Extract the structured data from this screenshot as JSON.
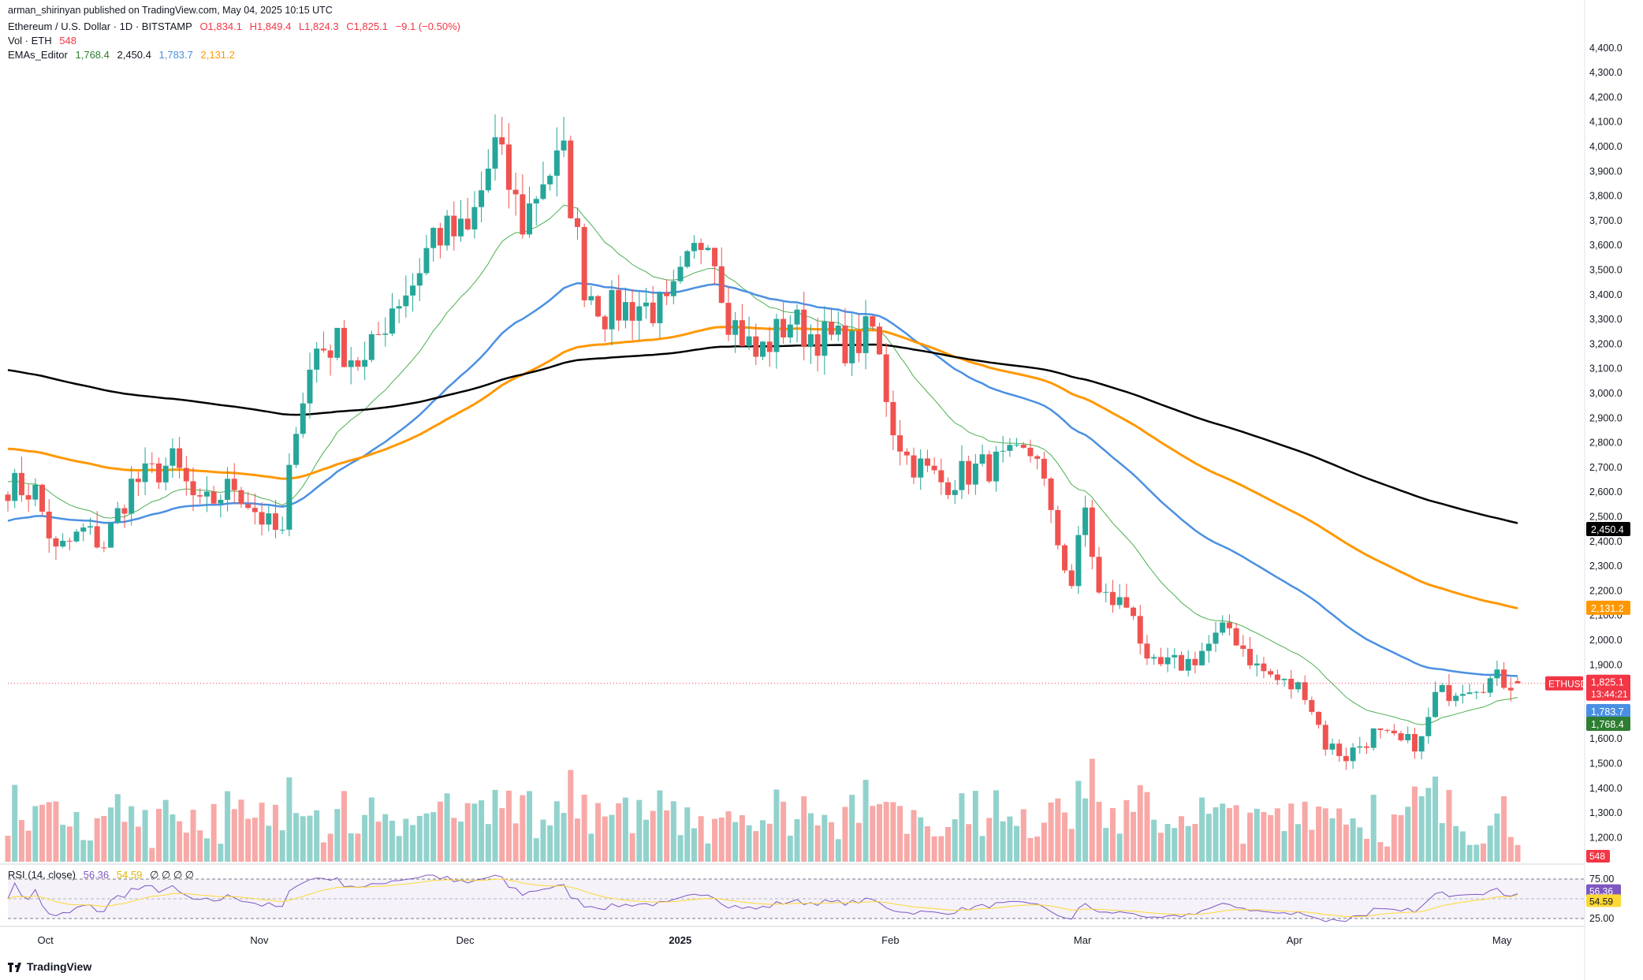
{
  "header": {
    "published": "arman_shirinyan published on TradingView.com, May 04, 2025 10:15 UTC",
    "symbol": "Ethereum / U.S. Dollar · 1D · BITSTAMP",
    "o": "O1,834.1",
    "h": "H1,849.4",
    "l": "L1,824.3",
    "c": "C1,825.1",
    "chg": "−9.1 (−0.50%)",
    "vol_label": "Vol · ETH",
    "vol_val": "548",
    "ema_label": "EMAs_Editor",
    "ema1": "1,768.4",
    "ema2": "2,450.4",
    "ema3": "1,783.7",
    "ema4": "2,131.2",
    "rsi_label": "RSI (14, close)",
    "rsi_val": "56.36",
    "rsi_ma": "54.59",
    "rsi_extra": "∅ ∅ ∅ ∅"
  },
  "colors": {
    "up": "#26a69a",
    "down": "#ef5350",
    "ema20": "#4caf50",
    "ema50": "#4a90e2",
    "ema100": "#ff9800",
    "ema200": "#000000",
    "rsi": "#7e57c2",
    "rsi_ma": "#fdd835"
  },
  "footer": {
    "brand": "TradingView"
  },
  "chart_data": {
    "type": "candlestick",
    "symbol": "ETHUSD",
    "y_ticks": [
      "4,400.0",
      "4,300.0",
      "4,200.0",
      "4,100.0",
      "4,000.0",
      "3,900.0",
      "3,800.0",
      "3,700.0",
      "3,600.0",
      "3,500.0",
      "3,400.0",
      "3,300.0",
      "3,200.0",
      "3,100.0",
      "3,000.0",
      "2,900.0",
      "2,800.0",
      "2,700.0",
      "2,600.0",
      "2,500.0",
      "2,400.0",
      "2,300.0",
      "2,200.0",
      "2,100.0",
      "2,000.0",
      "1,900.0",
      "1,800.0",
      "1,700.0",
      "1,600.0",
      "1,500.0",
      "1,400.0",
      "1,300.0",
      "1,200.0"
    ],
    "ylim": [
      1150,
      4460
    ],
    "x_labels": [
      {
        "label": "Oct",
        "date": "2024-10-01"
      },
      {
        "label": "Nov",
        "date": "2024-11-01"
      },
      {
        "label": "Dec",
        "date": "2024-12-01"
      },
      {
        "label": "2025",
        "date": "2025-01-01"
      },
      {
        "label": "Feb",
        "date": "2025-02-01"
      },
      {
        "label": "Mar",
        "date": "2025-03-01"
      },
      {
        "label": "Apr",
        "date": "2025-04-01"
      },
      {
        "label": "May",
        "date": "2025-05-01"
      }
    ],
    "date_range": [
      "2024-09-26",
      "2025-05-04"
    ],
    "last_price": 1825.1,
    "last_price_label": "1,825.1",
    "countdown": "13:44:21",
    "ema_last": [
      {
        "value": 2450.4,
        "label": "2,450.4",
        "color": "#000000"
      },
      {
        "value": 2131.2,
        "label": "2,131.2",
        "color": "#ff9800"
      },
      {
        "value": 1783.7,
        "label": "1,783.7",
        "color": "#4a90e2"
      },
      {
        "value": 1768.4,
        "label": "1,768.4",
        "color": "#2e7d32"
      }
    ],
    "volume_last_label": "548",
    "close_anchors": [
      [
        "2024-09-26",
        2630
      ],
      [
        "2024-09-30",
        2600
      ],
      [
        "2024-10-03",
        2350
      ],
      [
        "2024-10-07",
        2440
      ],
      [
        "2024-10-10",
        2390
      ],
      [
        "2024-10-14",
        2630
      ],
      [
        "2024-10-20",
        2720
      ],
      [
        "2024-10-24",
        2530
      ],
      [
        "2024-10-29",
        2630
      ],
      [
        "2024-11-03",
        2460
      ],
      [
        "2024-11-05",
        2420
      ],
      [
        "2024-11-07",
        2900
      ],
      [
        "2024-11-10",
        3180
      ],
      [
        "2024-11-13",
        3200
      ],
      [
        "2024-11-17",
        3110
      ],
      [
        "2024-11-21",
        3360
      ],
      [
        "2024-11-24",
        3450
      ],
      [
        "2024-11-27",
        3650
      ],
      [
        "2024-12-02",
        3640
      ],
      [
        "2024-12-06",
        4000
      ],
      [
        "2024-12-10",
        3690
      ],
      [
        "2024-12-13",
        3880
      ],
      [
        "2024-12-16",
        3950
      ],
      [
        "2024-12-19",
        3450
      ],
      [
        "2024-12-22",
        3330
      ],
      [
        "2024-12-27",
        3360
      ],
      [
        "2024-12-31",
        3330
      ],
      [
        "2025-01-06",
        3680
      ],
      [
        "2025-01-09",
        3320
      ],
      [
        "2025-01-13",
        3150
      ],
      [
        "2025-01-18",
        3300
      ],
      [
        "2025-01-20",
        3250
      ],
      [
        "2025-01-27",
        3190
      ],
      [
        "2025-01-30",
        3260
      ],
      [
        "2025-02-02",
        2870
      ],
      [
        "2025-02-04",
        2740
      ],
      [
        "2025-02-09",
        2640
      ],
      [
        "2025-02-15",
        2700
      ],
      [
        "2025-02-20",
        2730
      ],
      [
        "2025-02-23",
        2770
      ],
      [
        "2025-02-25",
        2480
      ],
      [
        "2025-02-28",
        2230
      ],
      [
        "2025-03-02",
        2530
      ],
      [
        "2025-03-04",
        2180
      ],
      [
        "2025-03-09",
        2130
      ],
      [
        "2025-03-11",
        1880
      ],
      [
        "2025-03-17",
        1910
      ],
      [
        "2025-03-23",
        2050
      ],
      [
        "2025-03-27",
        1890
      ],
      [
        "2025-03-31",
        1820
      ],
      [
        "2025-04-03",
        1800
      ],
      [
        "2025-04-06",
        1580
      ],
      [
        "2025-04-09",
        1530
      ],
      [
        "2025-04-13",
        1620
      ],
      [
        "2025-04-17",
        1580
      ],
      [
        "2025-04-20",
        1590
      ],
      [
        "2025-04-22",
        1770
      ],
      [
        "2025-04-26",
        1820
      ],
      [
        "2025-05-01",
        1840
      ],
      [
        "2025-05-04",
        1825
      ]
    ],
    "rsi": {
      "levels": [
        75,
        25
      ],
      "last": 56.36,
      "last_ma": 54.59,
      "labels": [
        "75.00",
        "25.00"
      ]
    }
  }
}
